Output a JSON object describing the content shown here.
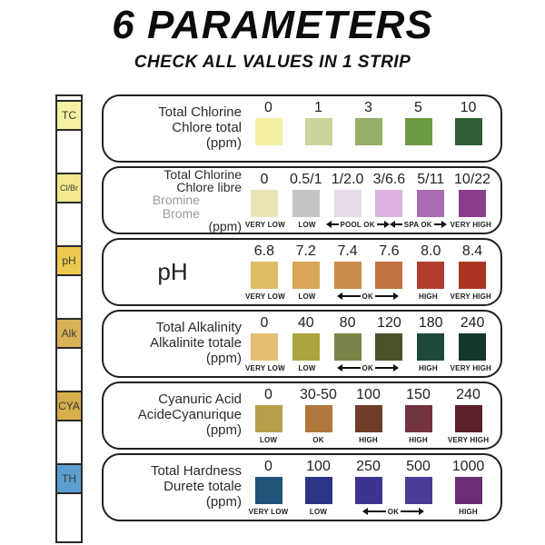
{
  "header": {
    "title": "6 PARAMETERS",
    "subtitle": "CHECK ALL VALUES IN 1 STRIP"
  },
  "strip": {
    "pads": [
      {
        "label": "TC",
        "color": "#f6f1a3"
      },
      {
        "label": "Cl/Br",
        "color": "#f3e98c"
      },
      {
        "label": "pH",
        "color": "#edc94e"
      },
      {
        "label": "Alk",
        "color": "#d9b158"
      },
      {
        "label": "CYA",
        "color": "#d6ae4c"
      },
      {
        "label": "TH",
        "color": "#5b9ecf"
      }
    ]
  },
  "rows": [
    {
      "code": "TC",
      "title_lines": [
        {
          "text": "Total Chlorine"
        },
        {
          "text": "Chlore total"
        },
        {
          "text": "(ppm)"
        }
      ],
      "columns": [
        {
          "value": "0",
          "color": "#f4f1a0"
        },
        {
          "value": "1",
          "color": "#cbd49a"
        },
        {
          "value": "3",
          "color": "#95af66"
        },
        {
          "value": "5",
          "color": "#6f9a45"
        },
        {
          "value": "10",
          "color": "#2f6134"
        }
      ],
      "statuses": []
    },
    {
      "code": "Cl/Br",
      "title_lines": [
        {
          "text": "Total Chlorine"
        },
        {
          "text": "Chlore libre"
        },
        {
          "text": "Bromine",
          "muted": true
        },
        {
          "text": "Brome",
          "muted": true
        },
        {
          "text": "(ppm)"
        }
      ],
      "columns": [
        {
          "value": "0",
          "color": "#eae3b5"
        },
        {
          "value": "0.5/1",
          "color": "#c7c4c7"
        },
        {
          "value": "1/2.0",
          "color": "#e5dce7"
        },
        {
          "value": "3/6.6",
          "color": "#ddb2de"
        },
        {
          "value": "5/11",
          "color": "#a96cb1"
        },
        {
          "value": "10/22",
          "color": "#8b3e90"
        }
      ],
      "statuses": [
        {
          "label": "VERY LOW",
          "span": 1
        },
        {
          "label": "LOW",
          "span": 1
        },
        {
          "label": "POOL OK",
          "span": 1.5,
          "arrows": true
        },
        {
          "label": "SPA OK",
          "span": 1.5,
          "arrows": true
        },
        {
          "label": "VERY HIGH",
          "span": 1
        }
      ]
    },
    {
      "code": "pH",
      "title_lines": [
        {
          "text": "pH",
          "big": true
        }
      ],
      "columns": [
        {
          "value": "6.8",
          "color": "#ddbc66"
        },
        {
          "value": "7.2",
          "color": "#d7a757"
        },
        {
          "value": "7.4",
          "color": "#cb8c4e"
        },
        {
          "value": "7.6",
          "color": "#c07540"
        },
        {
          "value": "8.0",
          "color": "#b23c2e"
        },
        {
          "value": "8.4",
          "color": "#aa3520"
        }
      ],
      "statuses": [
        {
          "label": "VERY LOW",
          "span": 1
        },
        {
          "label": "LOW",
          "span": 1
        },
        {
          "label": "OK",
          "span": 2,
          "arrows": true,
          "long": true
        },
        {
          "label": "HIGH",
          "span": 1
        },
        {
          "label": "VERY HIGH",
          "span": 1
        }
      ]
    },
    {
      "code": "Alk",
      "title_lines": [
        {
          "text": "Total Alkalinity"
        },
        {
          "text": "Alkalinite totale"
        },
        {
          "text": "(ppm)"
        }
      ],
      "columns": [
        {
          "value": "0",
          "color": "#e7bd72"
        },
        {
          "value": "40",
          "color": "#aba63f"
        },
        {
          "value": "80",
          "color": "#7c8349"
        },
        {
          "value": "120",
          "color": "#4b5429"
        },
        {
          "value": "180",
          "color": "#1d493b"
        },
        {
          "value": "240",
          "color": "#16382c"
        }
      ],
      "statuses": [
        {
          "label": "VERY LOW",
          "span": 1
        },
        {
          "label": "LOW",
          "span": 1
        },
        {
          "label": "OK",
          "span": 2,
          "arrows": true,
          "long": true
        },
        {
          "label": "HIGH",
          "span": 1
        },
        {
          "label": "VERY HIGH",
          "span": 1
        }
      ]
    },
    {
      "code": "CYA",
      "title_lines": [
        {
          "text": "Cyanuric Acid"
        },
        {
          "text": "AcideCyanurique"
        },
        {
          "text": "(ppm)"
        }
      ],
      "columns": [
        {
          "value": "0",
          "color": "#b5a14b"
        },
        {
          "value": "30-50",
          "color": "#b1773c"
        },
        {
          "value": "100",
          "color": "#6f3e28"
        },
        {
          "value": "150",
          "color": "#723340"
        },
        {
          "value": "240",
          "color": "#5c202c"
        }
      ],
      "statuses": [
        {
          "label": "LOW",
          "span": 1
        },
        {
          "label": "OK",
          "span": 1
        },
        {
          "label": "HIGH",
          "span": 1
        },
        {
          "label": "HIGH",
          "span": 1
        },
        {
          "label": "VERY HIGH",
          "span": 1
        }
      ]
    },
    {
      "code": "TH",
      "title_lines": [
        {
          "text": "Total Hardness"
        },
        {
          "text": "Durete totale"
        },
        {
          "text": "(ppm)"
        }
      ],
      "columns": [
        {
          "value": "0",
          "color": "#20547a"
        },
        {
          "value": "100",
          "color": "#2c3486"
        },
        {
          "value": "250",
          "color": "#3b3590"
        },
        {
          "value": "500",
          "color": "#4a3d97"
        },
        {
          "value": "1000",
          "color": "#6c2e72"
        }
      ],
      "statuses": [
        {
          "label": "VERY LOW",
          "span": 1
        },
        {
          "label": "LOW",
          "span": 1
        },
        {
          "label": "OK",
          "span": 2,
          "arrows": true,
          "long": true
        },
        {
          "label": "HIGH",
          "span": 1
        }
      ]
    }
  ]
}
